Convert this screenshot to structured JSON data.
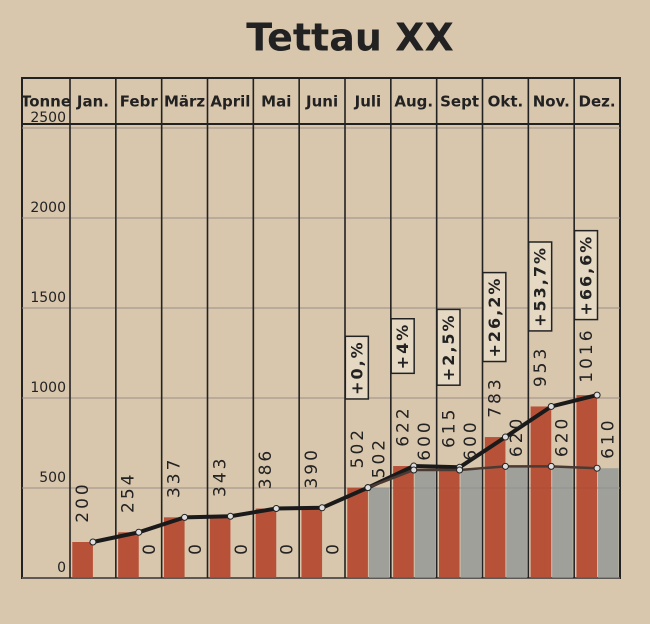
{
  "chart_data": {
    "type": "bar",
    "title": "Tettau XX",
    "y_header": "Tonne",
    "categories": [
      "Jan.",
      "Febr",
      "März",
      "April",
      "Mai",
      "Juni",
      "Juli",
      "Aug.",
      "Sept",
      "Okt.",
      "Nov.",
      "Dez."
    ],
    "series": [
      {
        "color": "#b4452c",
        "values": [
          200,
          254,
          337,
          343,
          386,
          390,
          502,
          622,
          615,
          783,
          953,
          1016
        ]
      },
      {
        "color": "#8e9394",
        "values": [
          null,
          0,
          0,
          0,
          0,
          0,
          502,
          600,
          600,
          620,
          620,
          610
        ]
      }
    ],
    "change_labels": [
      null,
      null,
      null,
      null,
      null,
      null,
      "+0,%",
      "+4%",
      "+2,5%",
      "+26,2%",
      "+53,7%",
      "+66,6%"
    ],
    "ylim": [
      0,
      2500
    ],
    "yticks": [
      0,
      500,
      1000,
      1500,
      2000,
      2500
    ],
    "grid": true
  }
}
